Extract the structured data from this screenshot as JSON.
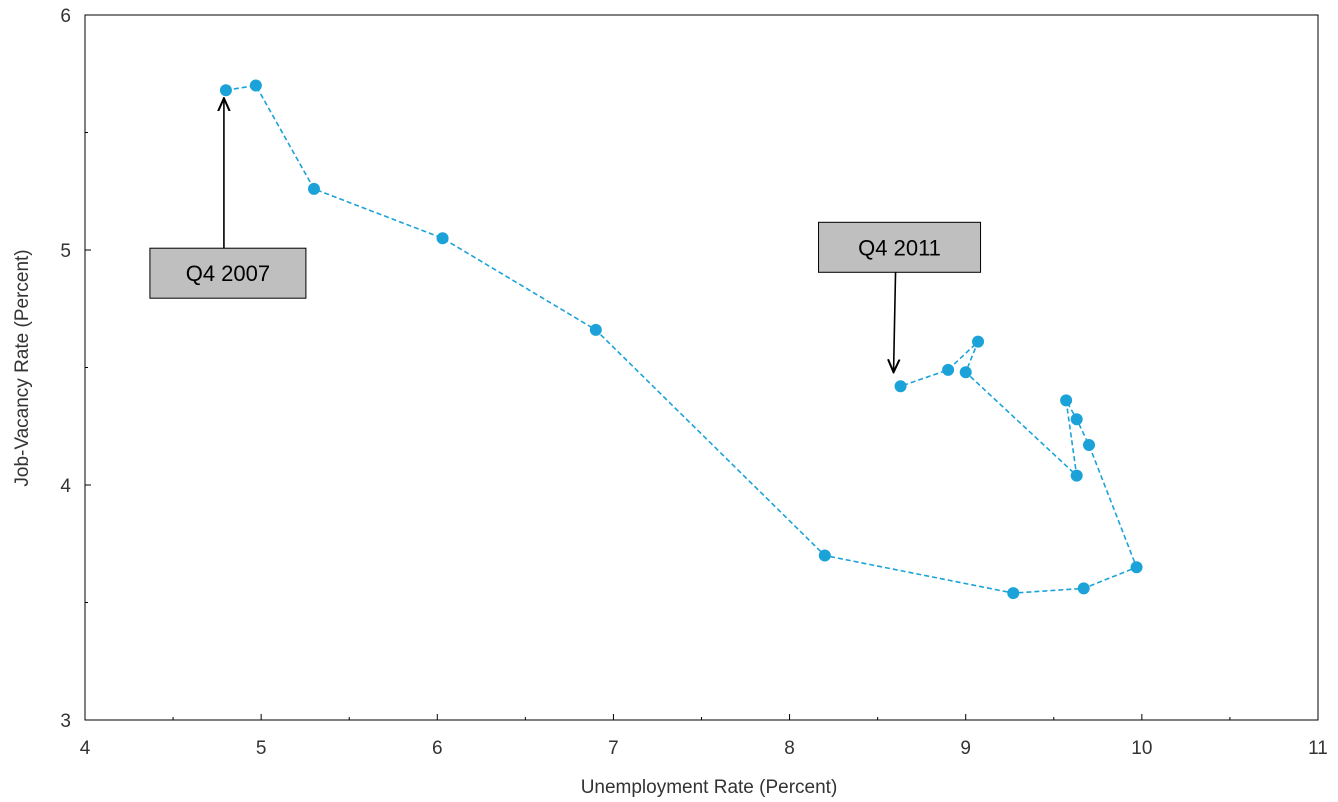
{
  "chart_data": {
    "type": "scatter",
    "title": "",
    "xlabel": "Unemployment Rate (Percent)",
    "ylabel": "Job-Vacancy Rate (Percent)",
    "xlim": [
      4,
      11
    ],
    "ylim": [
      3,
      6
    ],
    "x_ticks": [
      "4",
      "5",
      "6",
      "7",
      "8",
      "9",
      "10",
      "11"
    ],
    "y_ticks": [
      "3",
      "4",
      "5",
      "6"
    ],
    "grid": false,
    "connected": true,
    "line_style": "dashed",
    "color": "#1ba3d9",
    "points": [
      {
        "x": 4.8,
        "y": 5.68
      },
      {
        "x": 4.97,
        "y": 5.7
      },
      {
        "x": 5.3,
        "y": 5.26
      },
      {
        "x": 6.03,
        "y": 5.05
      },
      {
        "x": 6.9,
        "y": 4.66
      },
      {
        "x": 8.2,
        "y": 3.7
      },
      {
        "x": 9.27,
        "y": 3.54
      },
      {
        "x": 9.67,
        "y": 3.56
      },
      {
        "x": 9.97,
        "y": 3.65
      },
      {
        "x": 9.7,
        "y": 4.17
      },
      {
        "x": 9.63,
        "y": 4.28
      },
      {
        "x": 9.57,
        "y": 4.36
      },
      {
        "x": 9.63,
        "y": 4.04
      },
      {
        "x": 9.0,
        "y": 4.48
      },
      {
        "x": 9.07,
        "y": 4.61
      },
      {
        "x": 8.9,
        "y": 4.49
      },
      {
        "x": 8.63,
        "y": 4.42
      }
    ],
    "annotations": [
      {
        "text": "Q4 2007",
        "point_index": 0
      },
      {
        "text": "Q4 2011",
        "point_index": 16
      }
    ]
  }
}
